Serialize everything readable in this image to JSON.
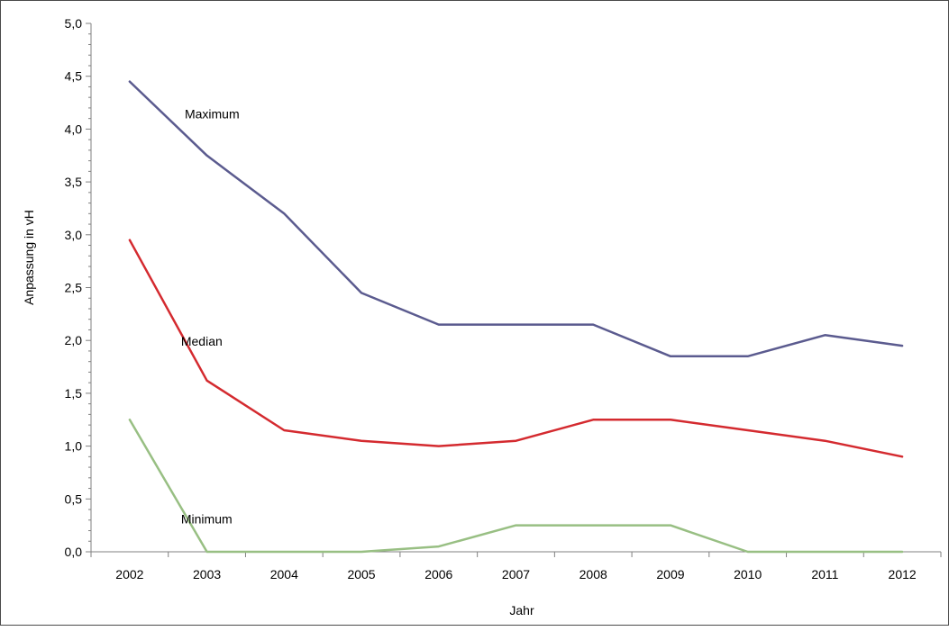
{
  "chart_data": {
    "type": "line",
    "title": "",
    "xlabel": "Jahr",
    "ylabel": "Anpassung in vH",
    "categories": [
      "2002",
      "2003",
      "2004",
      "2005",
      "2006",
      "2007",
      "2008",
      "2009",
      "2010",
      "2011",
      "2012"
    ],
    "ylim": [
      0,
      5
    ],
    "yticks": [
      "0,0",
      "0,5",
      "1,0",
      "1,5",
      "2,0",
      "2,5",
      "3,0",
      "3,5",
      "4,0",
      "4,5",
      "5,0"
    ],
    "grid": false,
    "legend": "none (series labeled inline)",
    "series": [
      {
        "name": "Maximum",
        "color": "#5b5b8f",
        "values": [
          4.45,
          3.75,
          3.2,
          2.45,
          2.15,
          2.15,
          2.15,
          1.85,
          1.85,
          2.05,
          1.95
        ]
      },
      {
        "name": "Median",
        "color": "#d42a2f",
        "values": [
          2.95,
          1.62,
          1.15,
          1.05,
          1.0,
          1.05,
          1.25,
          1.25,
          1.15,
          1.05,
          0.9
        ]
      },
      {
        "name": "Minimum",
        "color": "#98bf83",
        "values": [
          1.25,
          0.0,
          0.0,
          0.0,
          0.05,
          0.25,
          0.25,
          0.25,
          0.0,
          0.0,
          0.0
        ]
      }
    ]
  }
}
